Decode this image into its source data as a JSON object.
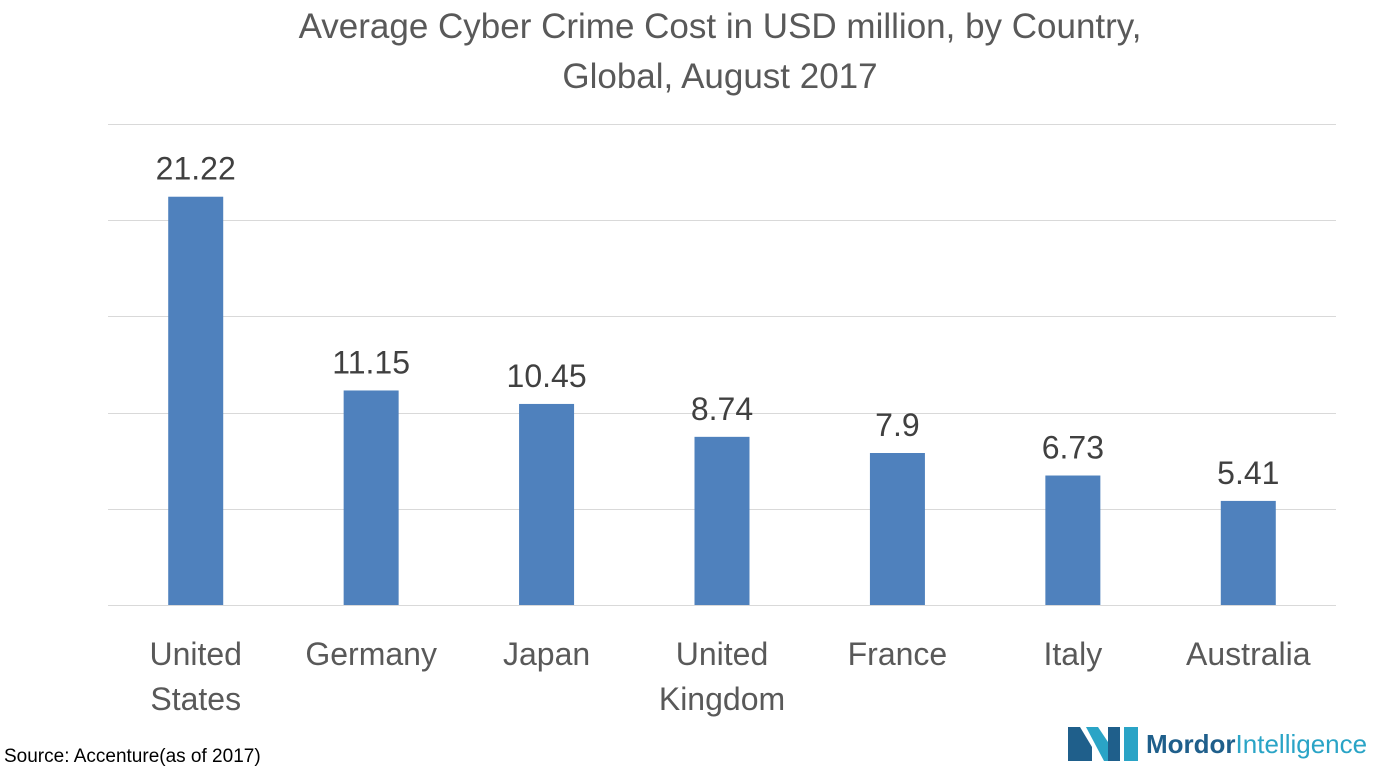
{
  "chart_data": {
    "type": "bar",
    "title_lines": [
      "Average Cyber Crime Cost in USD million, by Country,",
      "Global, August 2017"
    ],
    "categories": [
      [
        "United",
        "States"
      ],
      [
        "Germany"
      ],
      [
        "Japan"
      ],
      [
        "United",
        "Kingdom"
      ],
      [
        "France"
      ],
      [
        "Italy"
      ],
      [
        "Australia"
      ]
    ],
    "values": [
      21.22,
      11.15,
      10.45,
      8.74,
      7.9,
      6.73,
      5.41
    ],
    "value_labels": [
      "21.22",
      "11.15",
      "10.45",
      "8.74",
      "7.9",
      "6.73",
      "5.41"
    ],
    "ylim": [
      0,
      25
    ],
    "gridline_values": [
      5,
      10,
      15,
      20,
      25
    ],
    "grid": true,
    "bar_color": "#4f81bd",
    "gridline_color": "#d9d9d9"
  },
  "footer": {
    "source": "Source: Accenture(as of 2017)"
  },
  "logo": {
    "part1": "Mordor",
    "part2": "Intelligence",
    "colors": [
      "#1f5f8b",
      "#2aa4c6"
    ]
  }
}
